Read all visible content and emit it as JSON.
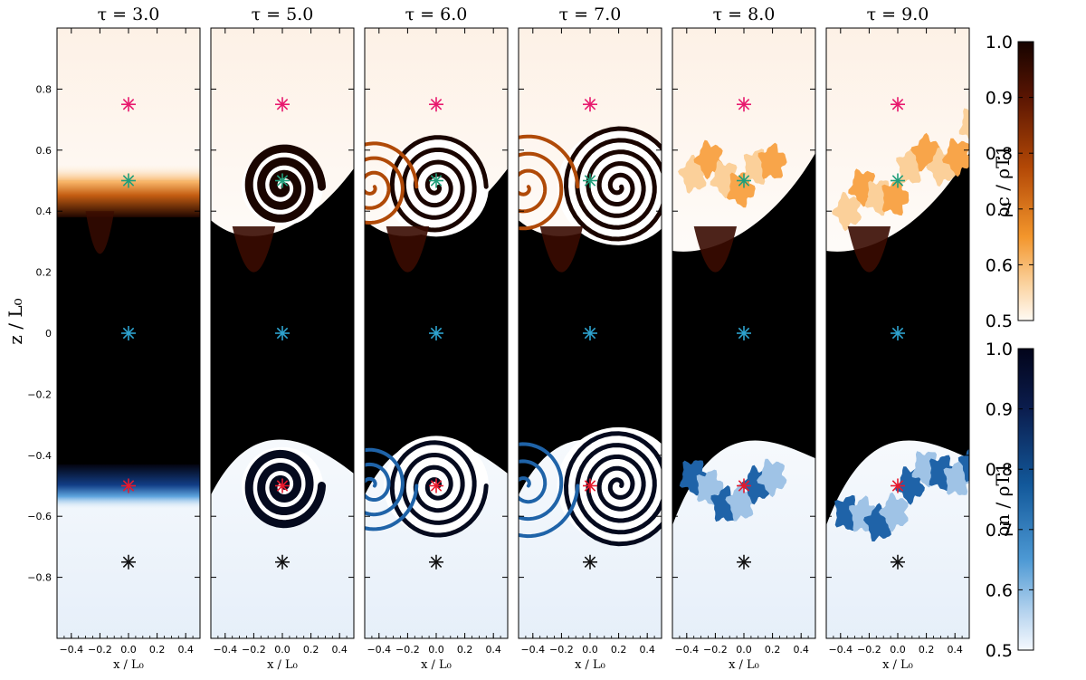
{
  "chart_data": {
    "type": "heatmap",
    "panels": [
      {
        "title": "τ = 3.0",
        "tau": 3.0,
        "stage": 0
      },
      {
        "title": "τ = 5.0",
        "tau": 5.0,
        "stage": 1
      },
      {
        "title": "τ = 6.0",
        "tau": 6.0,
        "stage": 2
      },
      {
        "title": "τ = 7.0",
        "tau": 7.0,
        "stage": 3
      },
      {
        "title": "τ = 8.0",
        "tau": 8.0,
        "stage": 4
      },
      {
        "title": "τ = 9.0",
        "tau": 9.0,
        "stage": 5
      }
    ],
    "xlabel": "x / L₀",
    "ylabel": "z / L₀",
    "xlim": [
      -0.5,
      0.5
    ],
    "ylim": [
      -1.0,
      1.0
    ],
    "xticks": [
      -0.4,
      -0.2,
      0.0,
      0.2,
      0.4
    ],
    "xtick_labels": [
      "−0.4",
      "−0.2",
      "0.0",
      "0.2",
      "0.4"
    ],
    "yticks": [
      0.8,
      0.6,
      0.4,
      0.2,
      0,
      -0.2,
      -0.4,
      -0.6,
      -0.8
    ],
    "ytick_labels": [
      "0.8",
      "0.6",
      "0.4",
      "0.2",
      "0",
      "−0.2",
      "−0.4",
      "−0.6",
      "−0.8"
    ],
    "markers": [
      {
        "x": 0.0,
        "z": 0.75,
        "color": "#e8196e"
      },
      {
        "x": 0.0,
        "z": 0.5,
        "color": "#1f9e7a"
      },
      {
        "x": 0.0,
        "z": 0.0,
        "color": "#2ea3cf"
      },
      {
        "x": 0.0,
        "z": -0.5,
        "color": "#e8192c"
      },
      {
        "x": 0.0,
        "z": -0.75,
        "color": "#111111"
      }
    ],
    "colorbars": [
      {
        "label_main": "ρc / ρT1",
        "range": [
          0.5,
          1.0
        ],
        "ticks": [
          "1.0",
          "0.9",
          "0.8",
          "0.7",
          "0.6",
          "0.5"
        ],
        "colormap": "white-orange-dark-brown"
      },
      {
        "label_main": "ρn / ρT1",
        "range": [
          0.5,
          1.0
        ],
        "ticks": [
          "1.0",
          "0.9",
          "0.8",
          "0.7",
          "0.6",
          "0.5"
        ],
        "colormap": "white-blue-dark-navy"
      }
    ],
    "colors": {
      "charged_dark": "#1a0500",
      "charged_mid": "#b04a08",
      "charged_light": "#f8a54a",
      "neutral_dark": "#050a1e",
      "neutral_mid": "#1f63a8",
      "neutral_light": "#9fc3e6",
      "background": "#000000"
    }
  }
}
